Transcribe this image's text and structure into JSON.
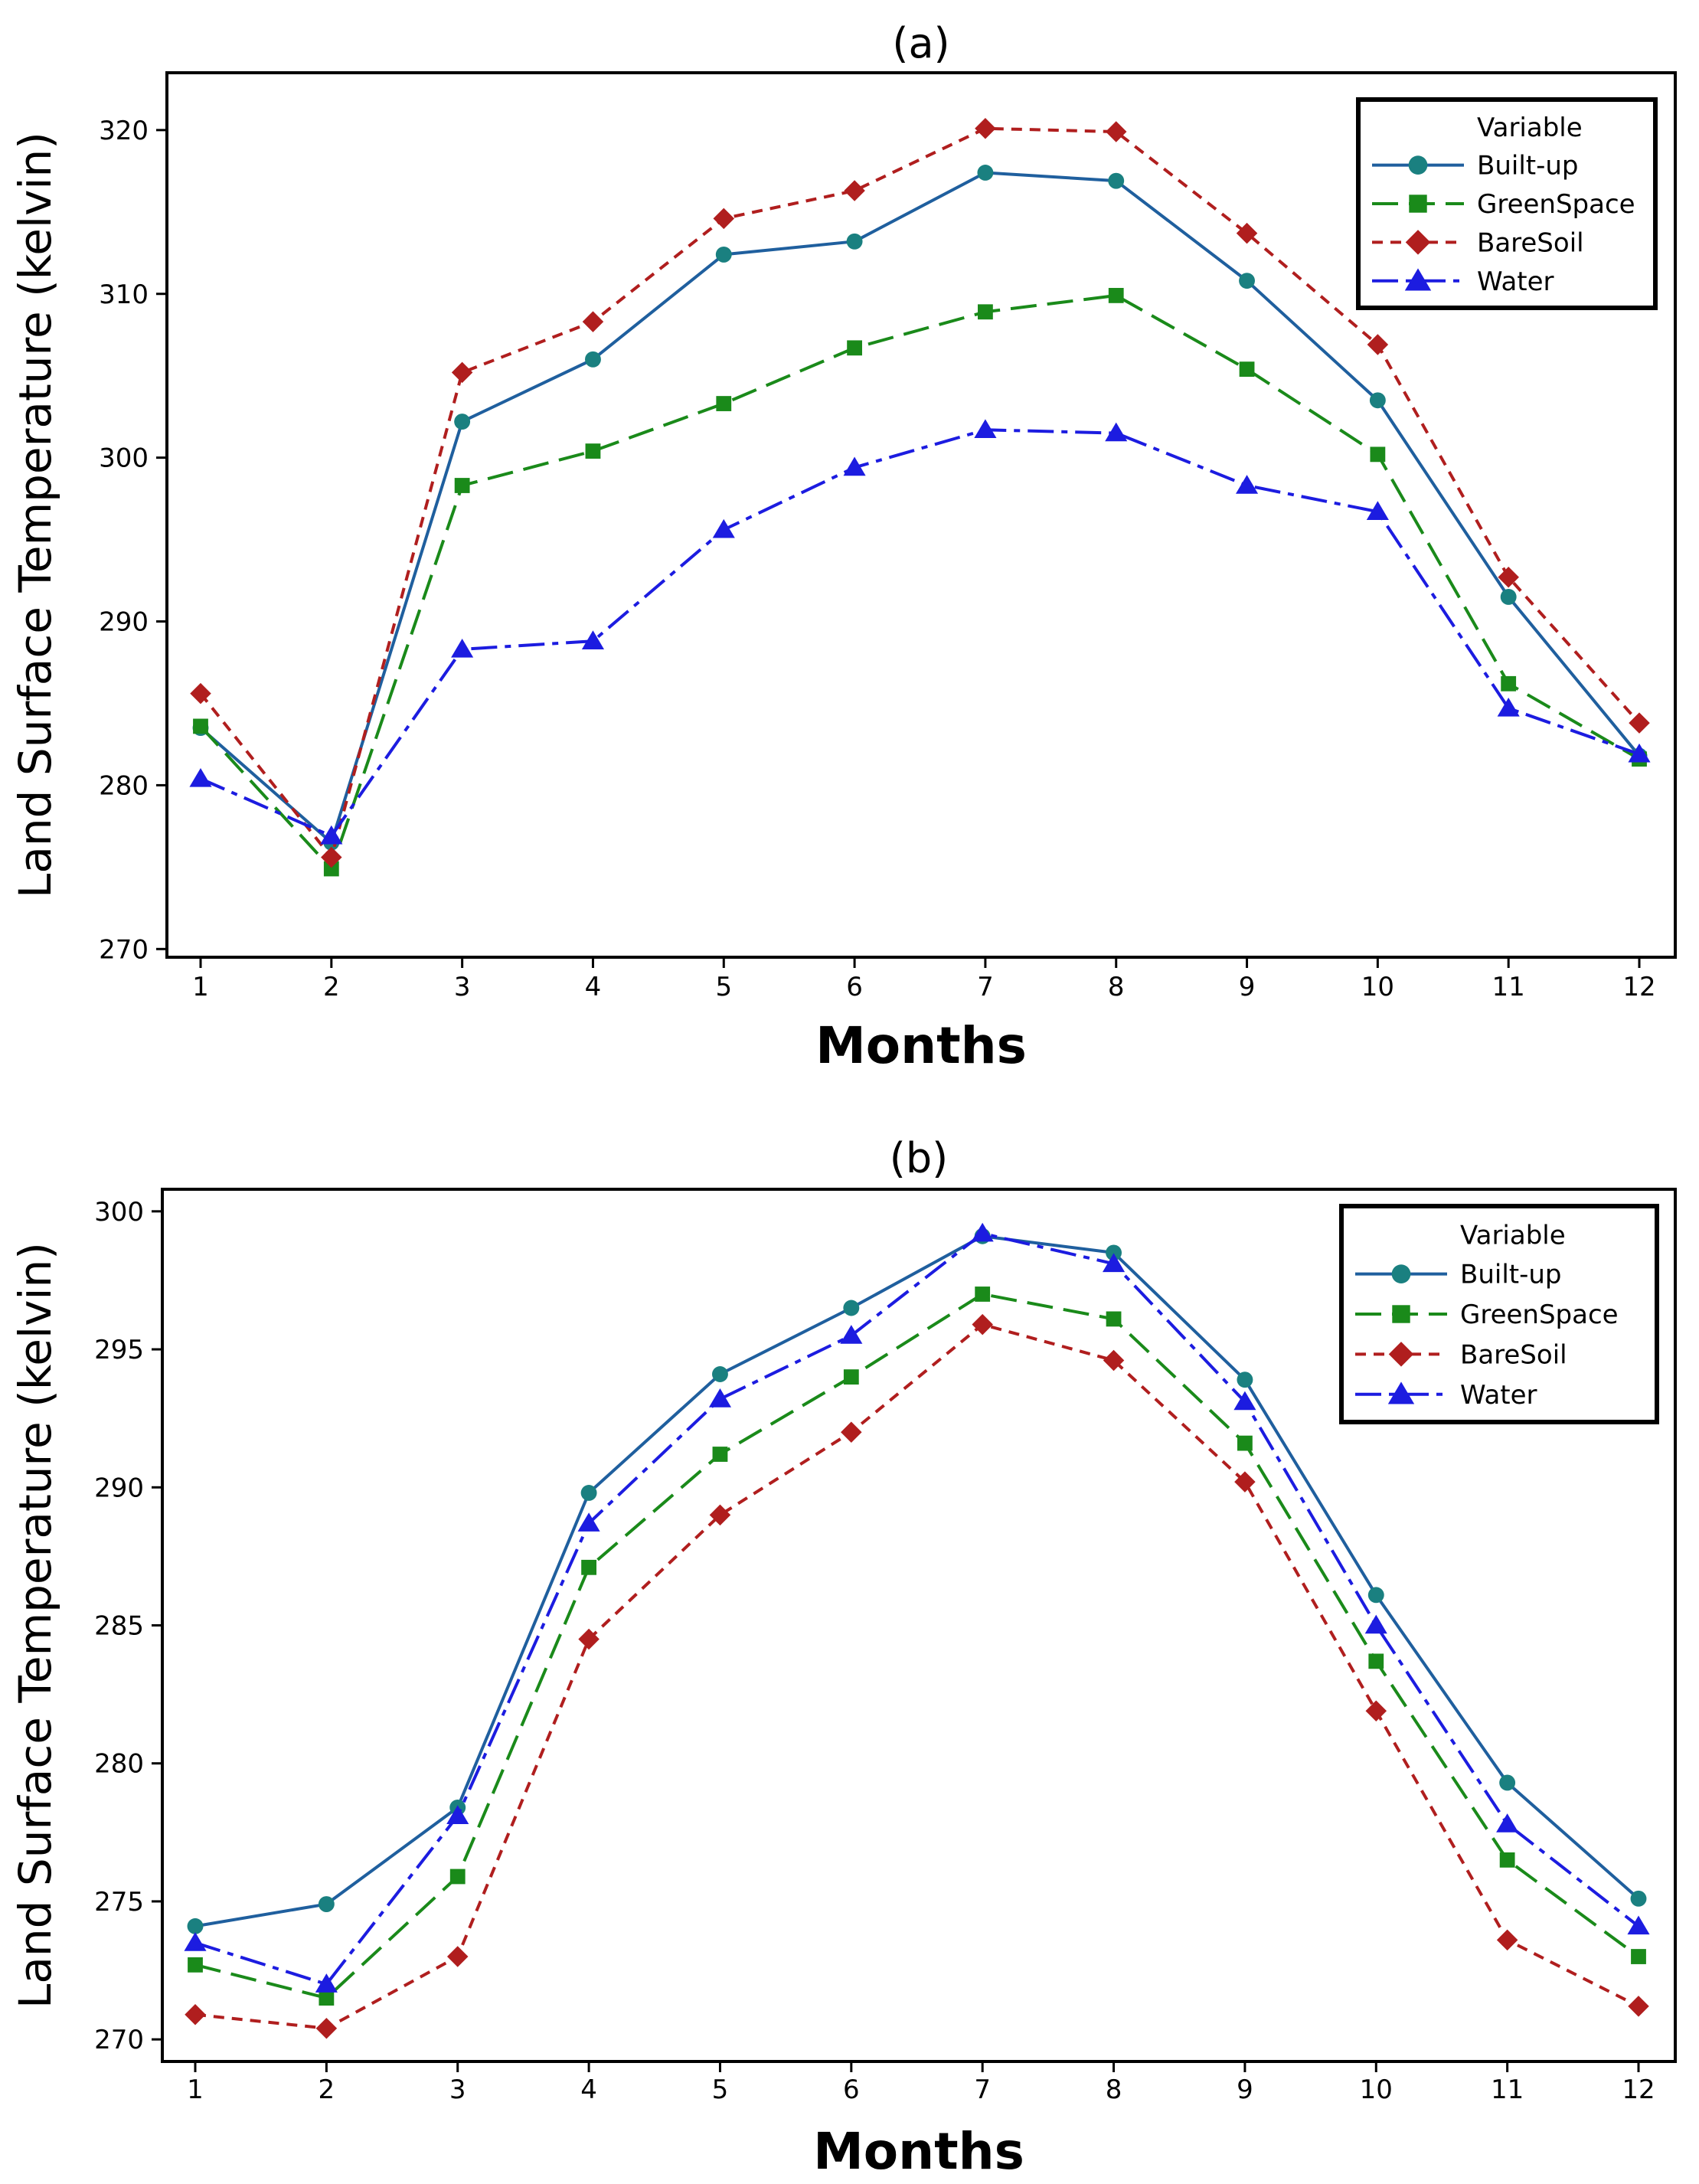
{
  "chart_data": [
    {
      "type": "line",
      "title": "(a)",
      "xlabel": "Months",
      "ylabel": "Land Surface Temperature (kelvin)",
      "x": [
        1,
        2,
        3,
        4,
        5,
        6,
        7,
        8,
        9,
        10,
        11,
        12
      ],
      "xticks": [
        "1",
        "2",
        "3",
        "4",
        "5",
        "6",
        "7",
        "8",
        "9",
        "10",
        "11",
        "12"
      ],
      "ylim": [
        269.5,
        323.5
      ],
      "yticks": [
        270,
        280,
        290,
        300,
        310,
        320
      ],
      "ytick_labels": [
        "270",
        "280",
        "290",
        "300",
        "310",
        "320"
      ],
      "legend": {
        "title": "Variable",
        "position": "top-right"
      },
      "series": [
        {
          "name": "Built-up",
          "color": "#1f5f9e",
          "marker_color": "#1a8080",
          "marker": "circle",
          "dash": "solid",
          "values": [
            283.5,
            276.5,
            302.2,
            306.0,
            312.4,
            313.2,
            317.4,
            316.9,
            310.8,
            303.5,
            291.5,
            281.8
          ]
        },
        {
          "name": "GreenSpace",
          "color": "#1a8a1a",
          "marker_color": "#1a8a1a",
          "marker": "square",
          "dash": "dashed",
          "values": [
            283.6,
            274.9,
            298.3,
            300.4,
            303.3,
            306.7,
            308.9,
            309.9,
            305.4,
            300.2,
            286.2,
            281.6
          ]
        },
        {
          "name": "BareSoil",
          "color": "#b01e1e",
          "marker_color": "#b01e1e",
          "marker": "diamond",
          "dash": "dotted",
          "values": [
            285.6,
            275.6,
            305.2,
            308.3,
            314.6,
            316.3,
            320.1,
            319.9,
            313.7,
            306.9,
            292.7,
            283.8
          ]
        },
        {
          "name": "Water",
          "color": "#1c1ce0",
          "marker_color": "#1c1ce0",
          "marker": "triangle",
          "dash": "dashdot",
          "values": [
            280.4,
            276.9,
            288.3,
            288.8,
            295.6,
            299.4,
            301.7,
            301.5,
            298.3,
            296.7,
            284.7,
            281.9
          ]
        }
      ]
    },
    {
      "type": "line",
      "title": "(b)",
      "xlabel": "Months",
      "ylabel": "Land Surface Temperature (kelvin)",
      "x": [
        1,
        2,
        3,
        4,
        5,
        6,
        7,
        8,
        9,
        10,
        11,
        12
      ],
      "xticks": [
        "1",
        "2",
        "3",
        "4",
        "5",
        "6",
        "7",
        "8",
        "9",
        "10",
        "11",
        "12"
      ],
      "ylim": [
        269.2,
        300.8
      ],
      "yticks": [
        270,
        275,
        280,
        285,
        290,
        295,
        300
      ],
      "ytick_labels": [
        "270",
        "275",
        "280",
        "285",
        "290",
        "295",
        "300"
      ],
      "legend": {
        "title": "Variable",
        "position": "top-right"
      },
      "series": [
        {
          "name": "Built-up",
          "color": "#1f5f9e",
          "marker_color": "#1a8080",
          "marker": "circle",
          "dash": "solid",
          "values": [
            274.1,
            274.9,
            278.4,
            289.8,
            294.1,
            296.5,
            299.1,
            298.5,
            293.9,
            286.1,
            279.3,
            275.1
          ]
        },
        {
          "name": "GreenSpace",
          "color": "#1a8a1a",
          "marker_color": "#1a8a1a",
          "marker": "square",
          "dash": "dashed",
          "values": [
            272.7,
            271.5,
            275.9,
            287.1,
            291.2,
            294.0,
            297.0,
            296.1,
            291.6,
            283.7,
            276.5,
            273.0
          ]
        },
        {
          "name": "BareSoil",
          "color": "#b01e1e",
          "marker_color": "#b01e1e",
          "marker": "diamond",
          "dash": "dotted",
          "values": [
            270.9,
            270.4,
            273.0,
            284.5,
            289.0,
            292.0,
            295.9,
            294.6,
            290.2,
            281.9,
            273.6,
            271.2
          ]
        },
        {
          "name": "Water",
          "color": "#1c1ce0",
          "marker_color": "#1c1ce0",
          "marker": "triangle",
          "dash": "dashdot",
          "values": [
            273.5,
            272.0,
            278.1,
            288.7,
            293.2,
            295.5,
            299.2,
            298.1,
            293.1,
            285.0,
            277.8,
            274.1
          ]
        }
      ]
    }
  ]
}
